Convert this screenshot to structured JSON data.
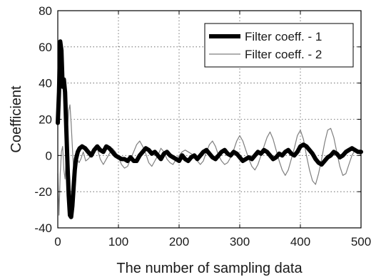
{
  "chart_data": {
    "type": "line",
    "title": "",
    "xlabel": "The number of sampling data",
    "ylabel": "Coefficient",
    "xlim": [
      0,
      500
    ],
    "ylim": [
      -40,
      80
    ],
    "xticks": [
      0,
      100,
      200,
      300,
      400,
      500
    ],
    "yticks": [
      -40,
      -20,
      0,
      20,
      40,
      60,
      80
    ],
    "grid": true,
    "legend": {
      "placement": "top-right"
    },
    "series": [
      {
        "name": "Filter coeff. - 1",
        "color": "#000000",
        "x": [
          0,
          2,
          4,
          6,
          8,
          10,
          12,
          14,
          16,
          18,
          20,
          22,
          24,
          26,
          28,
          30,
          33,
          36,
          40,
          45,
          50,
          55,
          60,
          65,
          70,
          75,
          80,
          85,
          90,
          95,
          100,
          105,
          110,
          115,
          120,
          125,
          130,
          135,
          140,
          145,
          150,
          155,
          160,
          165,
          170,
          175,
          180,
          185,
          190,
          195,
          200,
          205,
          210,
          215,
          220,
          225,
          230,
          235,
          240,
          245,
          250,
          255,
          260,
          265,
          270,
          275,
          280,
          285,
          290,
          295,
          300,
          305,
          310,
          315,
          320,
          325,
          330,
          335,
          340,
          345,
          350,
          355,
          360,
          365,
          370,
          375,
          380,
          385,
          390,
          395,
          400,
          405,
          410,
          415,
          420,
          425,
          430,
          435,
          440,
          445,
          450,
          455,
          460,
          465,
          470,
          475,
          480,
          485,
          490,
          495,
          500
        ],
        "y": [
          18,
          35,
          63,
          58,
          38,
          42,
          35,
          15,
          -5,
          -22,
          -33,
          -34,
          -28,
          -18,
          -8,
          -2,
          2,
          4,
          5,
          4,
          2,
          0,
          3,
          5,
          3,
          2,
          5,
          4,
          2,
          0,
          -1,
          -2,
          -2,
          -3,
          -1,
          -3,
          -3,
          0,
          2,
          4,
          3,
          1,
          2,
          0,
          -2,
          1,
          2,
          0,
          -1,
          -2,
          -3,
          0,
          -2,
          -3,
          -1,
          0,
          -2,
          0,
          2,
          3,
          1,
          -1,
          -2,
          0,
          2,
          3,
          1,
          0,
          2,
          1,
          -1,
          -3,
          -2,
          -1,
          -2,
          0,
          2,
          1,
          3,
          2,
          0,
          -2,
          -1,
          1,
          0,
          2,
          3,
          1,
          0,
          2,
          5,
          6,
          5,
          3,
          1,
          -2,
          -4,
          -5,
          -3,
          -1,
          0,
          2,
          1,
          -1,
          0,
          2,
          3,
          4,
          3,
          2,
          2
        ]
      },
      {
        "name": "Filter coeff. - 2",
        "color": "#7f7f7f",
        "x": [
          0,
          2,
          4,
          6,
          8,
          10,
          12,
          14,
          16,
          18,
          20,
          22,
          24,
          26,
          28,
          30,
          32,
          35,
          38,
          42,
          46,
          50,
          55,
          60,
          65,
          70,
          75,
          80,
          85,
          90,
          95,
          100,
          105,
          110,
          115,
          120,
          125,
          130,
          135,
          140,
          145,
          150,
          155,
          160,
          165,
          170,
          175,
          180,
          185,
          190,
          195,
          200,
          205,
          210,
          215,
          220,
          225,
          230,
          235,
          240,
          245,
          250,
          255,
          260,
          265,
          270,
          275,
          280,
          285,
          290,
          295,
          300,
          305,
          310,
          315,
          320,
          325,
          330,
          335,
          340,
          345,
          350,
          355,
          360,
          365,
          370,
          375,
          380,
          385,
          390,
          395,
          400,
          405,
          410,
          415,
          420,
          425,
          430,
          435,
          440,
          445,
          450,
          455,
          460,
          465,
          470,
          475,
          480,
          485,
          490,
          495,
          500
        ],
        "y": [
          -10,
          -33,
          -10,
          2,
          5,
          -8,
          -13,
          0,
          15,
          25,
          28,
          18,
          5,
          -8,
          -14,
          -8,
          -2,
          -4,
          -2,
          2,
          -3,
          -2,
          0,
          2,
          4,
          -2,
          -5,
          -2,
          1,
          4,
          2,
          -1,
          -5,
          -7,
          -6,
          -2,
          2,
          6,
          8,
          5,
          1,
          -4,
          -6,
          -3,
          0,
          4,
          2,
          -2,
          -4,
          -5,
          -2,
          0,
          2,
          3,
          2,
          1,
          -1,
          -3,
          -5,
          -3,
          2,
          6,
          8,
          5,
          0,
          -3,
          -5,
          -4,
          -1,
          3,
          8,
          11,
          8,
          3,
          -2,
          -6,
          -8,
          -5,
          0,
          5,
          10,
          13,
          9,
          3,
          -3,
          -8,
          -11,
          -8,
          -2,
          4,
          11,
          14,
          9,
          0,
          -8,
          -14,
          -16,
          -10,
          -2,
          7,
          14,
          15,
          10,
          2,
          -6,
          -11,
          -10,
          -5,
          0,
          3,
          2,
          0
        ]
      }
    ]
  }
}
